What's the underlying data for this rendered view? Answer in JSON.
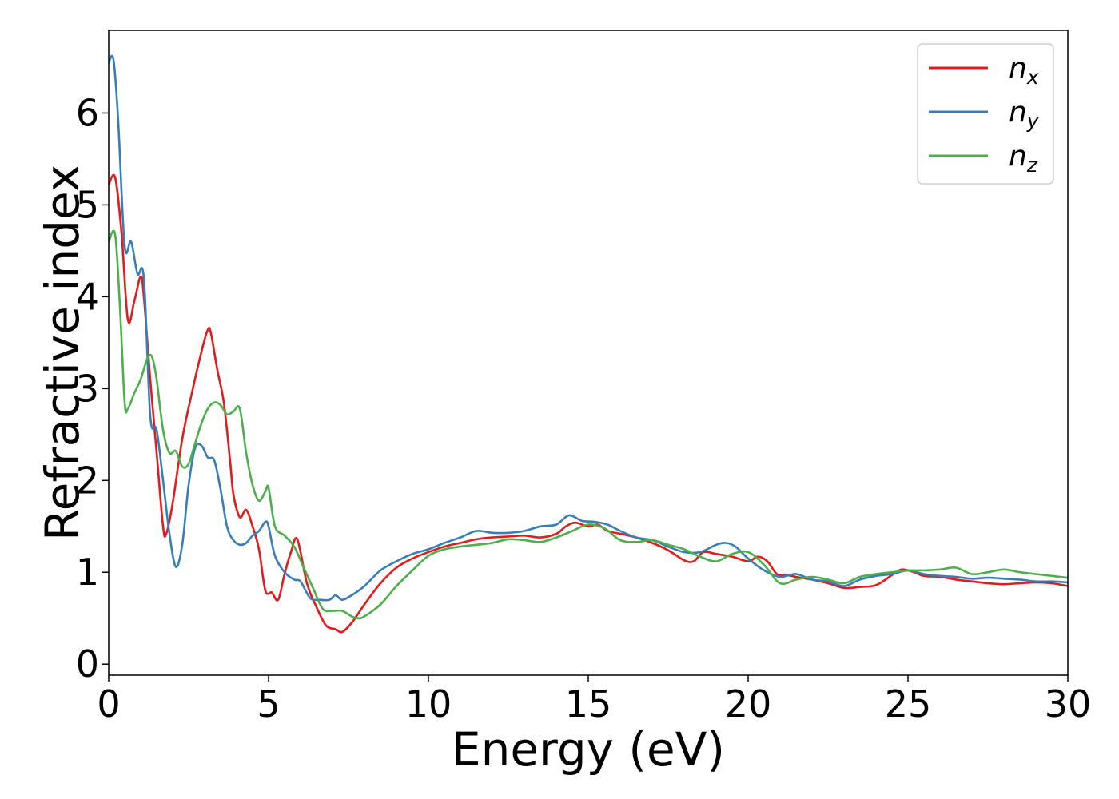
{
  "chart_data": {
    "type": "line",
    "title": "",
    "xlabel": "Energy (eV)",
    "ylabel": "Refractive index",
    "xlim": [
      0,
      30
    ],
    "ylim": [
      -0.12,
      6.9
    ],
    "xticks": [
      0,
      5,
      10,
      15,
      20,
      25,
      30
    ],
    "yticks": [
      0,
      1,
      2,
      3,
      4,
      5,
      6
    ],
    "grid": false,
    "legend": {
      "position": "top-right"
    },
    "series": [
      {
        "name": "n_x",
        "name_base": "n",
        "name_sub": "x",
        "color": "#e41a1c",
        "x": [
          0,
          0.2,
          0.4,
          0.6,
          0.8,
          1.0,
          1.1,
          1.3,
          1.5,
          1.7,
          1.8,
          2.0,
          2.3,
          2.6,
          2.9,
          3.1,
          3.2,
          3.4,
          3.6,
          3.8,
          3.9,
          4.1,
          4.3,
          4.5,
          4.7,
          4.9,
          5.1,
          5.3,
          5.5,
          5.7,
          5.9,
          6.2,
          6.5,
          6.8,
          7.1,
          7.3,
          7.6,
          8.0,
          8.5,
          9.0,
          9.5,
          10.0,
          10.5,
          11.0,
          11.5,
          12.0,
          12.5,
          13.0,
          13.5,
          14.0,
          14.3,
          14.6,
          15.0,
          15.3,
          15.6,
          16.0,
          16.5,
          17.0,
          17.5,
          18.0,
          18.3,
          18.6,
          19.0,
          19.5,
          20.0,
          20.3,
          20.6,
          20.9,
          21.2,
          21.5,
          22.0,
          22.5,
          23.0,
          23.5,
          24.0,
          24.5,
          24.8,
          25.2,
          25.5,
          26.0,
          26.5,
          27.0,
          27.5,
          28.0,
          28.5,
          29.0,
          29.5,
          30.0
        ],
        "y": [
          5.22,
          5.3,
          4.7,
          3.75,
          3.95,
          4.22,
          4.0,
          3.1,
          2.3,
          1.5,
          1.42,
          1.75,
          2.45,
          2.95,
          3.4,
          3.64,
          3.6,
          3.2,
          2.85,
          2.2,
          1.85,
          1.6,
          1.68,
          1.5,
          1.25,
          0.8,
          0.78,
          0.7,
          0.98,
          1.22,
          1.36,
          0.88,
          0.62,
          0.42,
          0.38,
          0.35,
          0.45,
          0.65,
          0.88,
          1.05,
          1.15,
          1.22,
          1.28,
          1.32,
          1.36,
          1.38,
          1.39,
          1.4,
          1.38,
          1.42,
          1.5,
          1.54,
          1.5,
          1.52,
          1.45,
          1.42,
          1.38,
          1.32,
          1.24,
          1.13,
          1.12,
          1.22,
          1.2,
          1.17,
          1.12,
          1.17,
          1.12,
          0.98,
          0.97,
          0.95,
          0.92,
          0.88,
          0.83,
          0.84,
          0.86,
          0.97,
          1.03,
          1.0,
          0.96,
          0.95,
          0.92,
          0.9,
          0.88,
          0.87,
          0.88,
          0.89,
          0.88,
          0.85
        ]
      },
      {
        "name": "n_y",
        "name_base": "n",
        "name_sub": "y",
        "color": "#377eb8",
        "x": [
          0,
          0.15,
          0.3,
          0.5,
          0.7,
          0.9,
          1.1,
          1.3,
          1.5,
          1.7,
          1.9,
          2.1,
          2.3,
          2.5,
          2.7,
          2.9,
          3.1,
          3.3,
          3.5,
          3.7,
          3.9,
          4.1,
          4.3,
          4.5,
          4.7,
          4.9,
          5.0,
          5.2,
          5.5,
          5.8,
          6.0,
          6.3,
          6.6,
          6.9,
          7.1,
          7.3,
          7.6,
          8.0,
          8.5,
          9.0,
          9.5,
          10.0,
          10.5,
          11.0,
          11.5,
          12.0,
          12.5,
          13.0,
          13.5,
          14.0,
          14.4,
          14.8,
          15.2,
          15.6,
          16.0,
          16.5,
          17.0,
          17.5,
          18.0,
          18.5,
          19.0,
          19.3,
          19.6,
          20.0,
          20.5,
          21.0,
          21.5,
          22.0,
          22.5,
          23.0,
          23.5,
          24.0,
          24.5,
          25.0,
          25.5,
          26.0,
          26.5,
          27.0,
          27.5,
          28.0,
          28.5,
          29.0,
          29.5,
          30.0
        ],
        "y": [
          6.55,
          6.58,
          5.9,
          4.55,
          4.6,
          4.25,
          4.2,
          2.7,
          2.55,
          2.0,
          1.42,
          1.06,
          1.3,
          1.95,
          2.35,
          2.38,
          2.25,
          2.22,
          1.9,
          1.5,
          1.35,
          1.3,
          1.32,
          1.4,
          1.45,
          1.55,
          1.5,
          1.18,
          1.0,
          0.92,
          0.9,
          0.72,
          0.7,
          0.7,
          0.75,
          0.7,
          0.75,
          0.85,
          1.02,
          1.12,
          1.2,
          1.25,
          1.32,
          1.38,
          1.45,
          1.43,
          1.43,
          1.45,
          1.5,
          1.52,
          1.62,
          1.56,
          1.55,
          1.52,
          1.45,
          1.38,
          1.35,
          1.28,
          1.22,
          1.22,
          1.3,
          1.32,
          1.28,
          1.15,
          1.02,
          0.95,
          0.98,
          0.92,
          0.9,
          0.85,
          0.92,
          0.96,
          0.98,
          1.02,
          0.98,
          0.96,
          0.95,
          0.93,
          0.94,
          0.93,
          0.92,
          0.9,
          0.9,
          0.89
        ]
      },
      {
        "name": "n_z",
        "name_base": "n",
        "name_sub": "z",
        "color": "#4daf4a",
        "x": [
          0,
          0.2,
          0.35,
          0.5,
          0.6,
          0.8,
          1.0,
          1.2,
          1.35,
          1.5,
          1.7,
          1.9,
          2.1,
          2.3,
          2.5,
          2.7,
          2.9,
          3.1,
          3.3,
          3.5,
          3.7,
          3.9,
          4.1,
          4.3,
          4.5,
          4.7,
          4.9,
          5.0,
          5.2,
          5.5,
          5.8,
          6.1,
          6.4,
          6.7,
          7.0,
          7.3,
          7.6,
          7.8,
          8.0,
          8.5,
          9.0,
          9.5,
          10.0,
          10.5,
          11.0,
          11.5,
          12.0,
          12.5,
          13.0,
          13.5,
          14.0,
          14.5,
          15.0,
          15.5,
          16.0,
          16.5,
          17.0,
          17.5,
          18.0,
          18.5,
          19.0,
          19.5,
          20.0,
          20.5,
          21.0,
          21.5,
          22.0,
          22.5,
          23.0,
          23.5,
          24.0,
          24.5,
          25.0,
          25.5,
          26.0,
          26.5,
          27.0,
          27.5,
          28.0,
          28.5,
          29.0,
          29.5,
          30.0
        ],
        "y": [
          4.6,
          4.68,
          3.9,
          2.85,
          2.78,
          2.95,
          3.1,
          3.32,
          3.35,
          3.1,
          2.55,
          2.3,
          2.32,
          2.15,
          2.18,
          2.4,
          2.62,
          2.78,
          2.85,
          2.82,
          2.72,
          2.75,
          2.78,
          2.3,
          1.95,
          1.78,
          1.88,
          1.92,
          1.5,
          1.4,
          1.28,
          1.05,
          0.82,
          0.6,
          0.58,
          0.58,
          0.52,
          0.5,
          0.52,
          0.65,
          0.85,
          1.02,
          1.18,
          1.25,
          1.28,
          1.3,
          1.32,
          1.36,
          1.35,
          1.33,
          1.38,
          1.45,
          1.52,
          1.48,
          1.35,
          1.33,
          1.35,
          1.3,
          1.25,
          1.17,
          1.12,
          1.2,
          1.22,
          1.08,
          0.88,
          0.92,
          0.95,
          0.92,
          0.88,
          0.95,
          0.98,
          1.0,
          1.02,
          1.02,
          1.03,
          1.05,
          0.98,
          1.0,
          1.03,
          1.0,
          0.98,
          0.96,
          0.94
        ]
      }
    ]
  }
}
